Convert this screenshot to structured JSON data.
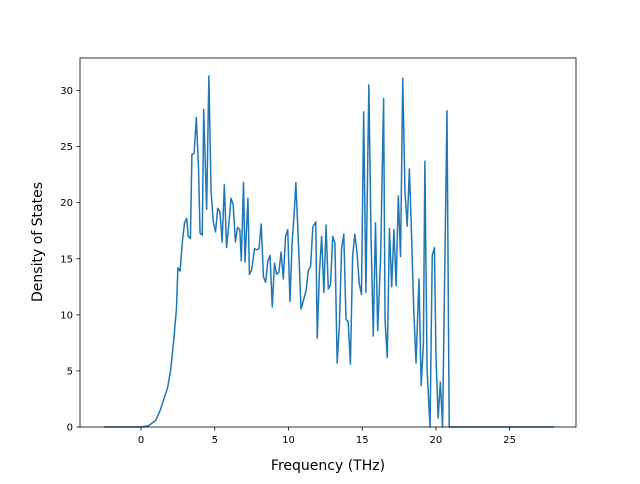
{
  "chart_data": {
    "type": "line",
    "xlabel": "Frequency (THz)",
    "ylabel": "Density of States",
    "x": [
      -2.5,
      -1,
      0,
      0.5,
      1.0,
      1.3,
      1.6,
      1.8,
      2.0,
      2.2,
      2.4,
      2.5,
      2.65,
      2.8,
      2.95,
      3.1,
      3.2,
      3.35,
      3.45,
      3.6,
      3.75,
      3.9,
      4.0,
      4.15,
      4.25,
      4.45,
      4.6,
      4.75,
      4.9,
      5.05,
      5.2,
      5.35,
      5.5,
      5.65,
      5.8,
      5.95,
      6.1,
      6.25,
      6.4,
      6.55,
      6.7,
      6.8,
      6.95,
      7.05,
      7.25,
      7.35,
      7.5,
      7.7,
      7.85,
      8.0,
      8.15,
      8.3,
      8.45,
      8.6,
      8.75,
      8.9,
      9.05,
      9.2,
      9.35,
      9.5,
      9.65,
      9.8,
      9.95,
      10.1,
      10.25,
      10.4,
      10.5,
      10.7,
      10.85,
      11.0,
      11.2,
      11.35,
      11.5,
      11.65,
      11.85,
      11.95,
      12.1,
      12.25,
      12.4,
      12.55,
      12.7,
      12.85,
      13.0,
      13.15,
      13.3,
      13.45,
      13.6,
      13.75,
      13.9,
      14.05,
      14.2,
      14.35,
      14.5,
      14.65,
      14.8,
      14.95,
      15.1,
      15.25,
      15.45,
      15.6,
      15.75,
      15.9,
      16.05,
      16.25,
      16.45,
      16.55,
      16.7,
      16.85,
      17.0,
      17.15,
      17.3,
      17.45,
      17.6,
      17.75,
      17.9,
      18.05,
      18.2,
      18.35,
      18.5,
      18.65,
      18.85,
      19.0,
      19.15,
      19.25,
      19.4,
      19.6,
      19.75,
      19.9,
      20.0,
      20.15,
      20.3,
      20.45,
      20.75,
      20.9,
      21.0,
      28.0
    ],
    "series": [
      {
        "color": "#1f77b4",
        "values": [
          0,
          0,
          0,
          0.1,
          0.6,
          1.5,
          2.7,
          3.5,
          5,
          7.5,
          10.5,
          14.2,
          13.9,
          16.5,
          18.2,
          18.6,
          17,
          16.8,
          24.3,
          24.4,
          27.6,
          23,
          17.3,
          17.1,
          28.3,
          19.4,
          31.3,
          21,
          18.3,
          17.4,
          19.5,
          19.2,
          16.5,
          21.6,
          16,
          18,
          20.4,
          19.8,
          16.5,
          17.8,
          17.6,
          14.8,
          21.8,
          14.7,
          20.4,
          13.6,
          14,
          15.9,
          15.8,
          15.9,
          18.1,
          13.4,
          12.9,
          14.8,
          15.3,
          10.7,
          14.6,
          13.6,
          13.8,
          15.6,
          13.2,
          17,
          17.6,
          11.2,
          16.5,
          19.3,
          21.8,
          15.6,
          10.5,
          11.2,
          12.2,
          14,
          14.3,
          17.8,
          18.3,
          7.9,
          13.8,
          17,
          12,
          18,
          12.3,
          12.7,
          17,
          16.4,
          5.7,
          9,
          15.9,
          17.2,
          9.6,
          9.4,
          5.6,
          15.2,
          17.2,
          15.5,
          12.8,
          11.8,
          28.1,
          12,
          30.5,
          17,
          8.1,
          18.2,
          8.6,
          15.2,
          29.3,
          9.5,
          6.2,
          17.7,
          12.5,
          17.6,
          12.6,
          20.6,
          15.2,
          31.1,
          21,
          17.9,
          23,
          17,
          10.3,
          5.7,
          13.2,
          3.7,
          7.4,
          23.7,
          5.1,
          0,
          15.3,
          16,
          6.5,
          0.8,
          4,
          0,
          28.2,
          0,
          0,
          0
        ]
      }
    ],
    "xlim": [
      -4.14,
      29.5
    ],
    "ylim": [
      0,
      32.9
    ],
    "xticks": [
      0,
      5,
      10,
      15,
      20,
      25
    ],
    "yticks": [
      0,
      5,
      10,
      15,
      20,
      25,
      30
    ]
  }
}
